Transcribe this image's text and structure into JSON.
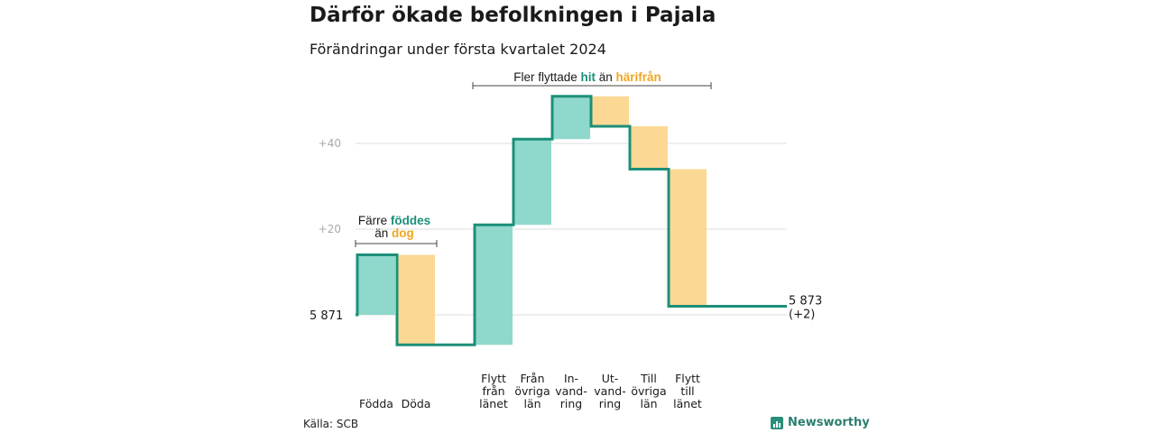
{
  "title": "Därför ökade befolkningen i Pajala",
  "subtitle": "Förändringar under första kvartalet 2024",
  "source": "Källa: SCB",
  "brand": "Newsworthy",
  "colors": {
    "increase": "#8fd8cc",
    "decrease": "#fbd894",
    "line": "#1c8f79",
    "teal_text": "#1c8f79",
    "orange_text": "#f0a722",
    "grid": "#dddddd",
    "tick": "#aaaaaa"
  },
  "annotations": {
    "left": {
      "line1_a": "Färre ",
      "line1_b": "föddes",
      "line2_a": "än ",
      "line2_b": "dog"
    },
    "right": {
      "part1": "Fler flyttade ",
      "part2": "hit",
      "part3": " än ",
      "part4": "härifrån"
    }
  },
  "chart_data": {
    "type": "waterfall",
    "start": {
      "label": "5 871",
      "value": 5871
    },
    "end": {
      "label": "5 873",
      "change_label": "(+2)",
      "value": 5873
    },
    "yticks": [
      {
        "label": "+20",
        "value": 20
      },
      {
        "label": "+40",
        "value": 40
      }
    ],
    "ylim": [
      -8,
      53
    ],
    "steps": [
      {
        "label": [
          "Födda"
        ],
        "delta": 14
      },
      {
        "label": [
          "Döda"
        ],
        "delta": -21
      },
      {
        "label": [
          "Flytt",
          "från",
          "länet"
        ],
        "delta": 28
      },
      {
        "label": [
          "Från",
          "övriga",
          "län"
        ],
        "delta": 20
      },
      {
        "label": [
          "In-",
          "vand-",
          "ring"
        ],
        "delta": 10
      },
      {
        "label": [
          "Ut-",
          "vand-",
          "ring"
        ],
        "delta": -7
      },
      {
        "label": [
          "Till",
          "övriga",
          "län"
        ],
        "delta": -10
      },
      {
        "label": [
          "Flytt",
          "till",
          "länet"
        ],
        "delta": -32
      }
    ]
  }
}
